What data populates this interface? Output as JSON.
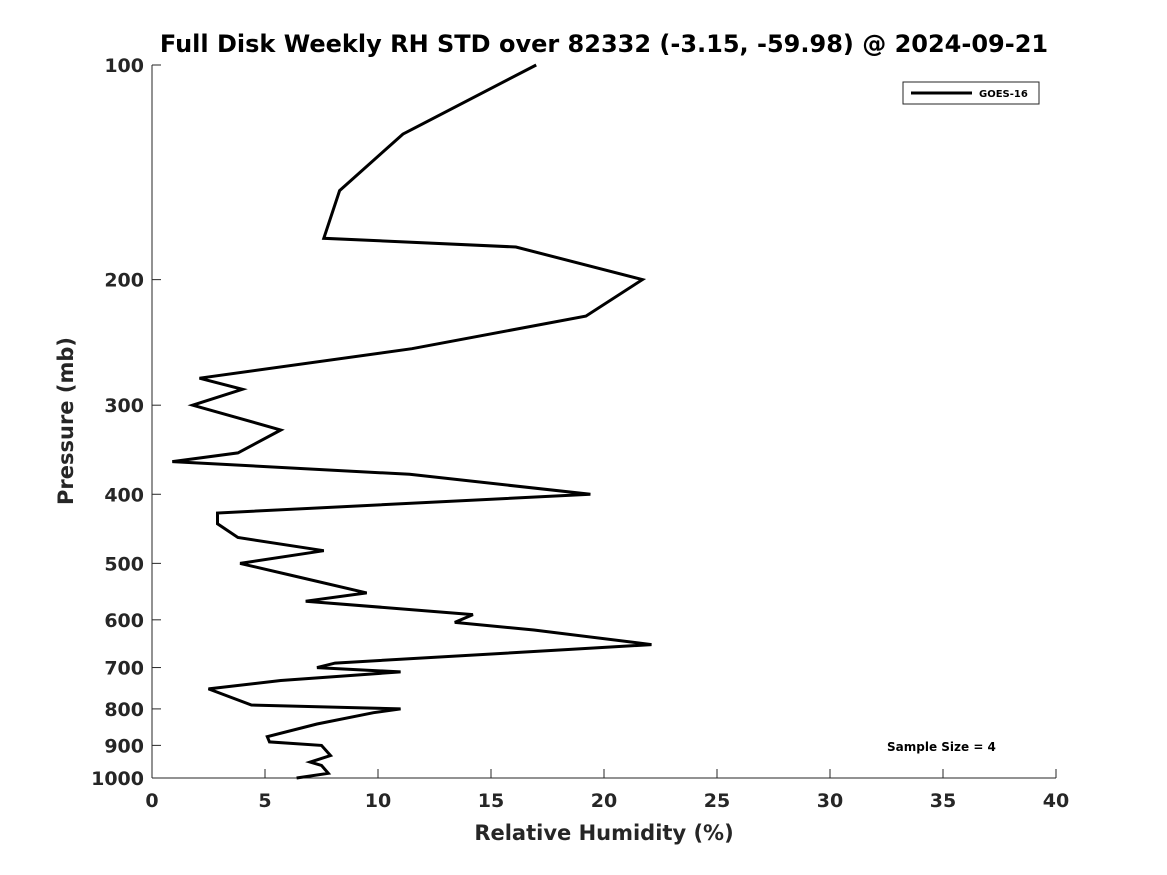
{
  "chart_data": {
    "type": "line",
    "title": "Full Disk Weekly RH STD over 82332 (-3.15, -59.98) @ 2024-09-21",
    "xlabel": "Relative Humidity (%)",
    "ylabel": "Pressure (mb)",
    "xlim": [
      0,
      40
    ],
    "ylim": [
      100,
      1000
    ],
    "yscale": "log",
    "y_reversed": true,
    "grid": false,
    "xticks": [
      0,
      5,
      10,
      15,
      20,
      25,
      30,
      35,
      40
    ],
    "yticks": [
      100,
      200,
      300,
      400,
      500,
      600,
      700,
      800,
      900,
      1000
    ],
    "legend_position": "top-right",
    "series": [
      {
        "name": "GOES-16",
        "color": "#000000",
        "points": [
          [
            17.0,
            100
          ],
          [
            11.1,
            125
          ],
          [
            8.3,
            150
          ],
          [
            7.6,
            175
          ],
          [
            16.1,
            180
          ],
          [
            21.7,
            200
          ],
          [
            19.2,
            225
          ],
          [
            11.5,
            250
          ],
          [
            2.1,
            275
          ],
          [
            4.0,
            285
          ],
          [
            1.8,
            300
          ],
          [
            5.7,
            325
          ],
          [
            3.8,
            350
          ],
          [
            0.9,
            360
          ],
          [
            11.4,
            375
          ],
          [
            19.4,
            400
          ],
          [
            2.9,
            425
          ],
          [
            2.9,
            440
          ],
          [
            3.8,
            460
          ],
          [
            7.6,
            480
          ],
          [
            3.9,
            500
          ],
          [
            6.2,
            520
          ],
          [
            9.5,
            550
          ],
          [
            6.8,
            565
          ],
          [
            14.2,
            590
          ],
          [
            13.4,
            605
          ],
          [
            16.9,
            620
          ],
          [
            22.1,
            650
          ],
          [
            18.6,
            660
          ],
          [
            8.1,
            690
          ],
          [
            7.3,
            700
          ],
          [
            11.0,
            710
          ],
          [
            5.7,
            730
          ],
          [
            2.5,
            750
          ],
          [
            4.4,
            790
          ],
          [
            11.0,
            800
          ],
          [
            9.8,
            810
          ],
          [
            7.3,
            840
          ],
          [
            5.1,
            875
          ],
          [
            5.2,
            890
          ],
          [
            7.5,
            900
          ],
          [
            7.9,
            930
          ],
          [
            7.0,
            950
          ],
          [
            7.5,
            960
          ],
          [
            7.8,
            985
          ],
          [
            6.4,
            1000
          ]
        ]
      }
    ],
    "annotations": [
      "Sample Size = 4"
    ]
  }
}
